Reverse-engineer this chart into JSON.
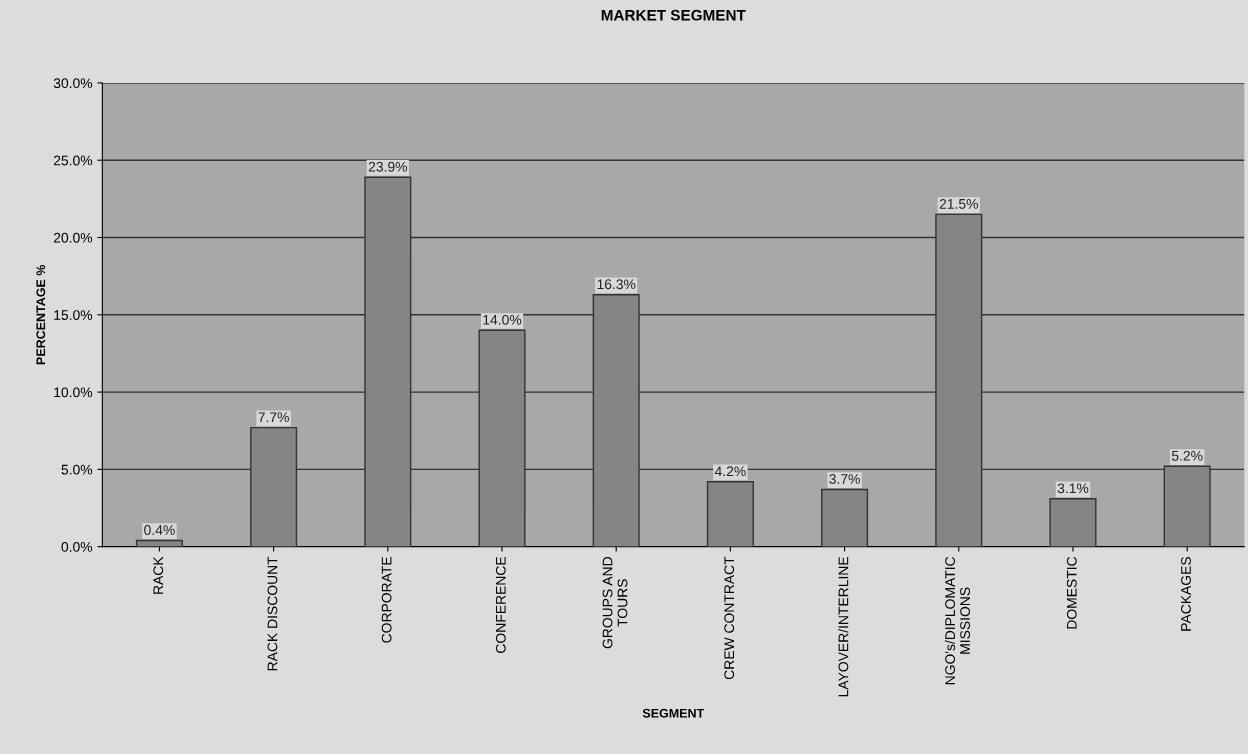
{
  "chart_data": {
    "type": "bar",
    "title": "MARKET SEGMENT",
    "xlabel": "SEGMENT",
    "ylabel": "PERCENTAGE %",
    "categories": [
      "RACK",
      "RACK DISCOUNT",
      "CORPORATE",
      "CONFERENCE",
      "GROUPS AND\nTOURS",
      "CREW CONTRACT",
      "LAYOVER/INTERLINE",
      "NGO's/DIPLOMATIC\nMISSIONS",
      "DOMESTIC",
      "PACKAGES"
    ],
    "values": [
      0.4,
      7.7,
      23.9,
      14.0,
      16.3,
      4.2,
      3.7,
      21.5,
      3.1,
      5.2
    ],
    "value_labels": [
      "0.4%",
      "7.7%",
      "23.9%",
      "14.0%",
      "16.3%",
      "4.2%",
      "3.7%",
      "21.5%",
      "3.1%",
      "5.2%"
    ],
    "color": "#858585",
    "ylim": [
      0,
      30
    ],
    "yticks": [
      {
        "value": 0,
        "label": "0.0%"
      },
      {
        "value": 5,
        "label": "5.0%"
      },
      {
        "value": 10,
        "label": "10.0%"
      },
      {
        "value": 15,
        "label": "15.0%"
      },
      {
        "value": 20,
        "label": "20.0%"
      },
      {
        "value": 25,
        "label": "25.0%"
      },
      {
        "value": 30,
        "label": "30.0%"
      }
    ],
    "grid": "y",
    "legend": false
  }
}
